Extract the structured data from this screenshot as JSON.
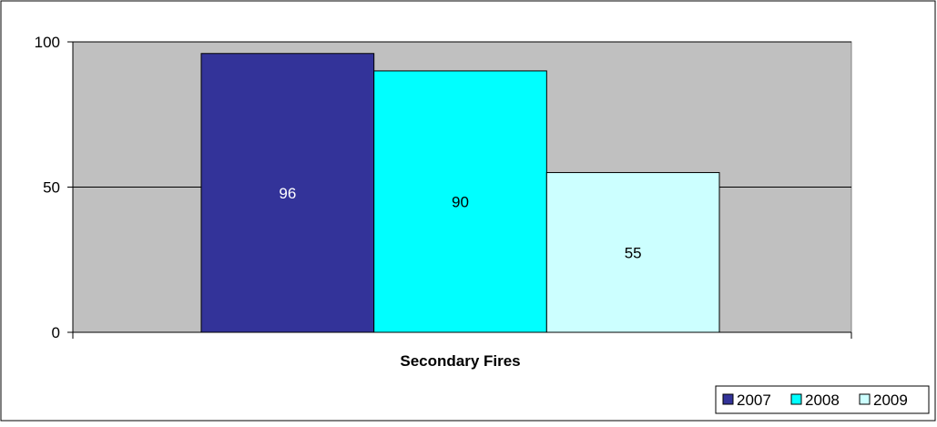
{
  "chart_data": {
    "type": "bar",
    "categories": [
      "Secondary Fires"
    ],
    "series": [
      {
        "name": "2007",
        "values": [
          96
        ],
        "color": "#333399"
      },
      {
        "name": "2008",
        "values": [
          90
        ],
        "color": "#00FFFF"
      },
      {
        "name": "2009",
        "values": [
          55
        ],
        "color": "#CCFFFF"
      }
    ],
    "xlabel": "Secondary Fires",
    "ylabel": "",
    "title": "",
    "ylim": [
      0,
      100
    ],
    "yticks": [
      0,
      50,
      100
    ],
    "ytick_labels": [
      "0",
      "50",
      "100"
    ],
    "grid": true,
    "legend": "bottom-right",
    "plot_background": "#C0C0C0",
    "data_label_color": "#000000"
  }
}
